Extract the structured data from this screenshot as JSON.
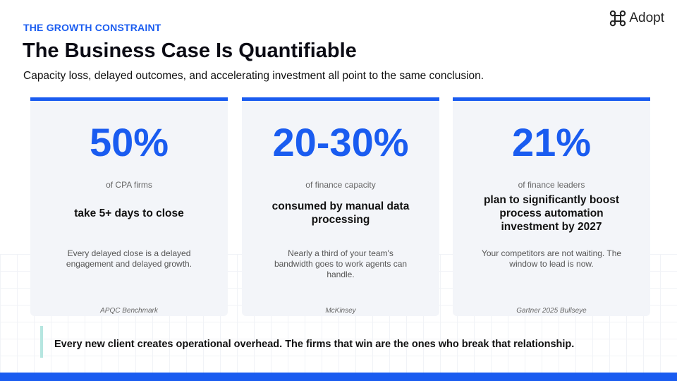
{
  "header": {
    "eyebrow": "THE GROWTH CONSTRAINT",
    "title": "The Business Case Is Quantifiable",
    "subtitle": "Capacity loss, delayed outcomes, and accelerating investment all point to the same conclusion.",
    "logo": "Adopt"
  },
  "cards": [
    {
      "stat": "50%",
      "label": "of CPA firms",
      "statement": "take 5+ days to close",
      "description": "Every delayed close is a delayed engagement and delayed growth.",
      "source": "APQC Benchmark"
    },
    {
      "stat": "20-30%",
      "label": "of finance capacity",
      "statement": "consumed by manual data processing",
      "description": "Nearly a third of your team's bandwidth goes to work agents can handle.",
      "source": "McKinsey"
    },
    {
      "stat": "21%",
      "label": "of finance leaders",
      "statement": "plan to significantly boost process automation investment by 2027",
      "description": "Your competitors are not waiting. The window to lead is now.",
      "source": "Gartner 2025 Bullseye"
    }
  ],
  "callout": "Every new client creates operational overhead. The firms that win are the ones who break that relationship."
}
